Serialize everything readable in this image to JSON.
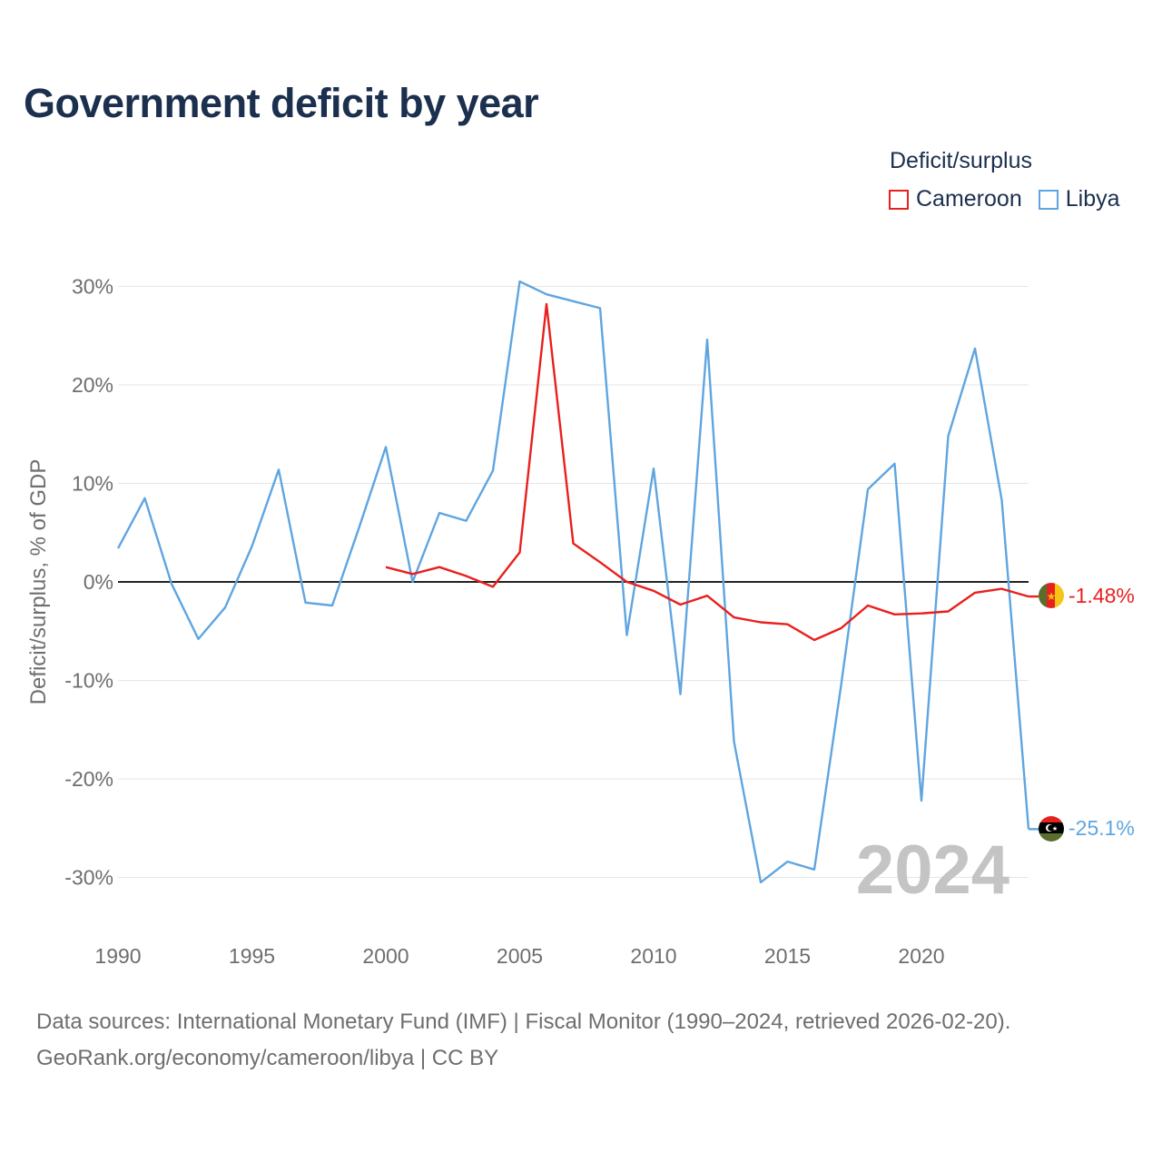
{
  "title": "Government deficit by year",
  "legend": {
    "title": "Deficit/surplus",
    "items": [
      {
        "name": "Cameroon",
        "color": "#e8201e"
      },
      {
        "name": "Libya",
        "color": "#5fa5e0"
      }
    ]
  },
  "source": {
    "line1": "Data sources: International Monetary Fund (IMF) | Fiscal Monitor (1990–2024, retrieved 2026-02-20).",
    "line2": "GeoRank.org/economy/cameroon/libya | CC BY"
  },
  "chart_data": {
    "type": "line",
    "title": "Government deficit by year",
    "xlabel": "",
    "ylabel": "Deficit/surplus, % of GDP",
    "xlim": [
      1990,
      2024
    ],
    "ylim": [
      -35,
      32
    ],
    "x_ticks": [
      1990,
      1995,
      2000,
      2005,
      2010,
      2015,
      2020
    ],
    "y_ticks": [
      30,
      20,
      10,
      0,
      -10,
      -20,
      -30
    ],
    "y_tick_labels": [
      "30%",
      "20%",
      "10%",
      "0%",
      "-10%",
      "-20%",
      "-30%"
    ],
    "year_watermark": "2024",
    "series": [
      {
        "name": "Cameroon",
        "color": "#e8201e",
        "end_label": "-1.48%",
        "flag": "cameroon-flag",
        "points": [
          [
            2000,
            1.5
          ],
          [
            2001,
            0.8
          ],
          [
            2002,
            1.5
          ],
          [
            2003,
            0.6
          ],
          [
            2004,
            -0.5
          ],
          [
            2005,
            3.0
          ],
          [
            2006,
            28.2
          ],
          [
            2007,
            3.9
          ],
          [
            2008,
            2.0
          ],
          [
            2009,
            0.0
          ],
          [
            2010,
            -0.9
          ],
          [
            2011,
            -2.3
          ],
          [
            2012,
            -1.4
          ],
          [
            2013,
            -3.6
          ],
          [
            2014,
            -4.1
          ],
          [
            2015,
            -4.3
          ],
          [
            2016,
            -5.9
          ],
          [
            2017,
            -4.7
          ],
          [
            2018,
            -2.4
          ],
          [
            2019,
            -3.3
          ],
          [
            2020,
            -3.2
          ],
          [
            2021,
            -3.0
          ],
          [
            2022,
            -1.1
          ],
          [
            2023,
            -0.7
          ],
          [
            2024,
            -1.48
          ]
        ]
      },
      {
        "name": "Libya",
        "color": "#5fa5e0",
        "end_label": "-25.1%",
        "flag": "libya-flag",
        "points": [
          [
            1990,
            3.4
          ],
          [
            1991,
            8.5
          ],
          [
            1992,
            -0.2
          ],
          [
            1993,
            -5.8
          ],
          [
            1994,
            -2.6
          ],
          [
            1995,
            3.6
          ],
          [
            1996,
            11.4
          ],
          [
            1997,
            -2.1
          ],
          [
            1998,
            -2.4
          ],
          [
            1999,
            5.5
          ],
          [
            2000,
            13.7
          ],
          [
            2001,
            0.0
          ],
          [
            2002,
            7.0
          ],
          [
            2003,
            6.2
          ],
          [
            2004,
            11.3
          ],
          [
            2005,
            30.5
          ],
          [
            2006,
            29.2
          ],
          [
            2007,
            28.5
          ],
          [
            2008,
            27.8
          ],
          [
            2009,
            -5.4
          ],
          [
            2010,
            11.5
          ],
          [
            2011,
            -11.4
          ],
          [
            2012,
            24.6
          ],
          [
            2013,
            -16.2
          ],
          [
            2014,
            -30.5
          ],
          [
            2015,
            -28.4
          ],
          [
            2016,
            -29.2
          ],
          [
            2017,
            -10.5
          ],
          [
            2018,
            9.4
          ],
          [
            2019,
            12.0
          ],
          [
            2020,
            -22.2
          ],
          [
            2021,
            14.8
          ],
          [
            2022,
            23.7
          ],
          [
            2023,
            8.3
          ],
          [
            2024,
            -25.1
          ]
        ]
      }
    ]
  }
}
